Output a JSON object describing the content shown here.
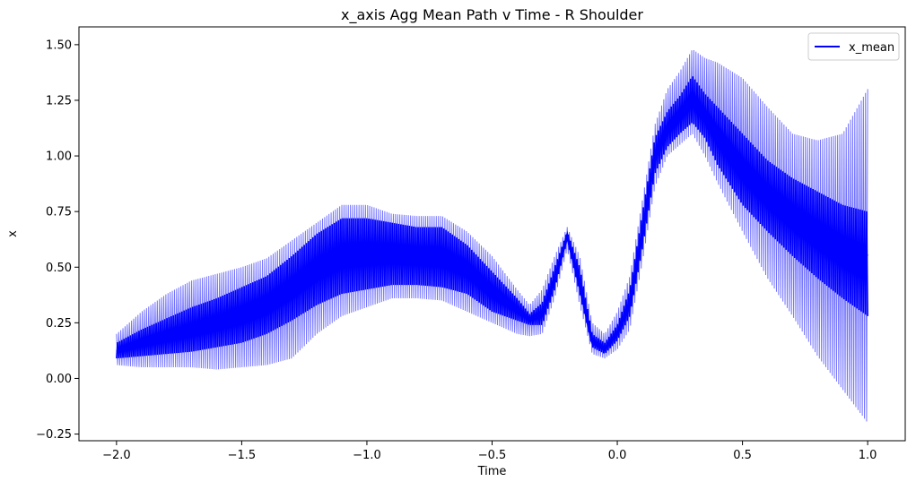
{
  "chart_data": {
    "type": "line",
    "title": "x_axis Agg Mean Path v Time - R Shoulder",
    "xlabel": "Time",
    "ylabel": "x",
    "xlim": [
      -2.15,
      1.15
    ],
    "ylim": [
      -0.28,
      1.58
    ],
    "xticks": [
      -2.0,
      -1.5,
      -1.0,
      -0.5,
      0.0,
      0.5,
      1.0
    ],
    "xtick_labels": [
      "−2.0",
      "−1.5",
      "−1.0",
      "−0.5",
      "0.0",
      "0.5",
      "1.0"
    ],
    "yticks": [
      -0.25,
      0.0,
      0.25,
      0.5,
      0.75,
      1.0,
      1.25,
      1.5
    ],
    "ytick_labels": [
      "−0.25",
      "0.00",
      "0.25",
      "0.50",
      "0.75",
      "1.00",
      "1.25",
      "1.50"
    ],
    "grid": false,
    "legend": {
      "position": "top-right",
      "entries": [
        "x_mean"
      ]
    },
    "series": [
      {
        "name": "x_mean",
        "color": "#0000ff",
        "band_color": "#0000ff",
        "x": [
          -2.0,
          -1.9,
          -1.8,
          -1.7,
          -1.6,
          -1.5,
          -1.4,
          -1.3,
          -1.2,
          -1.1,
          -1.0,
          -0.9,
          -0.8,
          -0.7,
          -0.6,
          -0.5,
          -0.4,
          -0.35,
          -0.3,
          -0.25,
          -0.2,
          -0.15,
          -0.1,
          -0.05,
          0.0,
          0.05,
          0.1,
          0.15,
          0.2,
          0.25,
          0.3,
          0.35,
          0.4,
          0.5,
          0.6,
          0.7,
          0.8,
          0.9,
          1.0
        ],
        "upper": [
          0.2,
          0.3,
          0.38,
          0.44,
          0.47,
          0.5,
          0.54,
          0.62,
          0.7,
          0.78,
          0.78,
          0.74,
          0.73,
          0.73,
          0.66,
          0.55,
          0.4,
          0.33,
          0.4,
          0.55,
          0.68,
          0.55,
          0.25,
          0.2,
          0.3,
          0.46,
          0.8,
          1.14,
          1.3,
          1.38,
          1.48,
          1.44,
          1.42,
          1.35,
          1.22,
          1.1,
          1.07,
          1.1,
          1.3
        ],
        "mid_upper": [
          0.16,
          0.22,
          0.27,
          0.32,
          0.36,
          0.41,
          0.46,
          0.55,
          0.65,
          0.72,
          0.72,
          0.7,
          0.68,
          0.68,
          0.6,
          0.48,
          0.36,
          0.29,
          0.34,
          0.5,
          0.66,
          0.5,
          0.2,
          0.16,
          0.24,
          0.4,
          0.74,
          1.08,
          1.2,
          1.27,
          1.36,
          1.28,
          1.22,
          1.1,
          0.98,
          0.9,
          0.84,
          0.78,
          0.75
        ],
        "mean": [
          0.12,
          0.15,
          0.18,
          0.22,
          0.24,
          0.28,
          0.32,
          0.38,
          0.45,
          0.52,
          0.55,
          0.55,
          0.55,
          0.54,
          0.48,
          0.38,
          0.31,
          0.26,
          0.28,
          0.44,
          0.64,
          0.42,
          0.16,
          0.13,
          0.2,
          0.33,
          0.65,
          1.0,
          1.12,
          1.18,
          1.26,
          1.2,
          1.1,
          0.95,
          0.85,
          0.75,
          0.66,
          0.6,
          0.55
        ],
        "mid_lower": [
          0.09,
          0.1,
          0.11,
          0.12,
          0.14,
          0.16,
          0.2,
          0.26,
          0.33,
          0.38,
          0.4,
          0.42,
          0.42,
          0.41,
          0.38,
          0.3,
          0.26,
          0.24,
          0.24,
          0.4,
          0.62,
          0.38,
          0.14,
          0.11,
          0.17,
          0.28,
          0.58,
          0.92,
          1.04,
          1.1,
          1.15,
          1.08,
          0.96,
          0.78,
          0.66,
          0.55,
          0.45,
          0.36,
          0.28
        ],
        "lower": [
          0.06,
          0.05,
          0.05,
          0.05,
          0.04,
          0.05,
          0.06,
          0.09,
          0.2,
          0.28,
          0.32,
          0.36,
          0.36,
          0.35,
          0.3,
          0.25,
          0.2,
          0.19,
          0.2,
          0.36,
          0.58,
          0.33,
          0.11,
          0.09,
          0.13,
          0.22,
          0.52,
          0.86,
          1.0,
          1.05,
          1.1,
          1.0,
          0.88,
          0.66,
          0.45,
          0.28,
          0.1,
          -0.05,
          -0.2
        ]
      }
    ]
  }
}
